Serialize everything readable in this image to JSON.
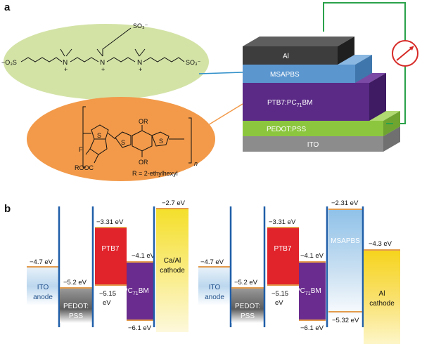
{
  "panel_a_label": "a",
  "panel_b_label": "b",
  "stack_layers": {
    "al": "Al",
    "msapbs": "MSAPBS",
    "active_main": "PTB7:PC",
    "active_sub": "71",
    "active_end": "BM",
    "pedot": "PEDOT:PSS",
    "ito": "ITO"
  },
  "molecule_top": {
    "so3_left": "−O₃S",
    "so3_top": "SO₃⁻",
    "so3_right": "SO₃⁻",
    "n1": "N",
    "n2": "N",
    "n3": "N",
    "plus": "+"
  },
  "molecule_bottom": {
    "substituent_label": "R = 2-ethylhexyl",
    "or_top": "OR",
    "or_bottom": "OR",
    "f": "F",
    "s": "S",
    "rooc": "ROOC",
    "n": "n"
  },
  "left_diagram": {
    "ito_level": "−4.7 eV",
    "ito_name": [
      "ITO",
      "anode"
    ],
    "pedot_level": "−5.2 eV",
    "pedot_name": [
      "PEDOT:",
      "PSS"
    ],
    "ptb7_lumo": "−3.31 eV",
    "ptb7_homo": [
      "−5.15",
      "eV"
    ],
    "ptb7_name": "PTB7",
    "pcbm_lumo": "−4.1 eV",
    "pcbm_homo": "−6.1 eV",
    "pcbm_name": "PC",
    "pcbm_sub": "71",
    "pcbm_end": "BM",
    "cathode_level": "−2.7 eV",
    "cathode_name": [
      "Ca/Al",
      "cathode"
    ]
  },
  "right_diagram": {
    "ito_level": "−4.7 eV",
    "ito_name": [
      "ITO",
      "anode"
    ],
    "pedot_level": "−5.2 eV",
    "pedot_name": [
      "PEDOT:",
      "PSS"
    ],
    "ptb7_lumo": "−3.31 eV",
    "ptb7_homo": [
      "−5.15",
      "eV"
    ],
    "ptb7_name": "PTB7",
    "pcbm_lumo": "−4.1 eV",
    "pcbm_homo": "−6.1 eV",
    "pcbm_name": "PC",
    "pcbm_sub": "71",
    "pcbm_end": "BM",
    "msapbs_lumo": "−2.31 eV",
    "msapbs_homo": "−5.32 eV",
    "msapbs_name": "MSAPBS",
    "al_level": "−4.3 eV",
    "al_name": [
      "Al",
      "cathode"
    ]
  },
  "colors": {
    "green_ellipse": "#d3e3a6",
    "orange_ellipse": "#f29a4a",
    "al": "#3d3d3d",
    "msapbs": "#5b96cf",
    "ptb7_pcbm": "#5a2a86",
    "pedot": "#8cc63f",
    "ito": "#8c8c8c",
    "ptb7": "#e1232b",
    "pcbm": "#6a2c8e",
    "circuit": "#2aa24a",
    "meter": "#d62a27",
    "electrode": "#1f5ea8",
    "level_line": "#e39b4c"
  }
}
